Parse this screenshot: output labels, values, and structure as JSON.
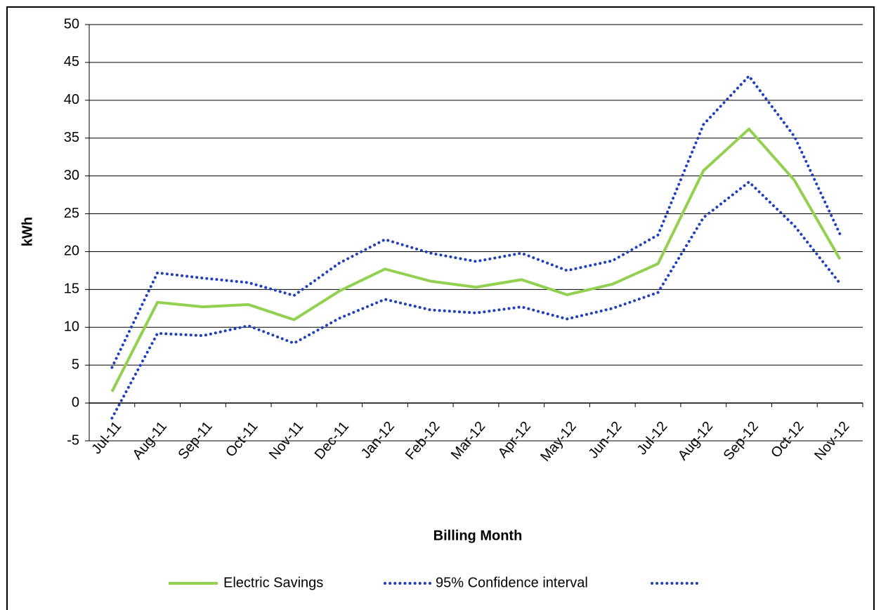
{
  "chart_data": {
    "type": "line",
    "ylabel": "kWh",
    "xlabel": "Billing Month",
    "categories": [
      "Jul-11",
      "Aug-11",
      "Sep-11",
      "Oct-11",
      "Nov-11",
      "Dec-11",
      "Jan-12",
      "Feb-12",
      "Mar-12",
      "Apr-12",
      "May-12",
      "Jun-12",
      "Jul-12",
      "Aug-12",
      "Sep-12",
      "Oct-12",
      "Nov-12"
    ],
    "series": [
      {
        "name": "Electric Savings",
        "color": "#92d050",
        "style": "solid",
        "values": [
          1.5,
          13.3,
          12.7,
          13.0,
          11.0,
          14.8,
          17.7,
          16.1,
          15.3,
          16.3,
          14.3,
          15.7,
          18.4,
          30.7,
          36.2,
          29.4,
          19.0
        ]
      },
      {
        "name": "95% Confidence interval",
        "color": "#1f3fbf",
        "style": "dotted",
        "values": [
          4.7,
          17.2,
          16.5,
          15.9,
          14.2,
          18.5,
          21.6,
          19.8,
          18.7,
          19.8,
          17.5,
          18.8,
          22.2,
          36.8,
          43.2,
          35.2,
          22.3
        ]
      },
      {
        "color": "#1f3fbf",
        "style": "dotted",
        "values": [
          -2.0,
          9.2,
          8.9,
          10.2,
          7.9,
          11.2,
          13.7,
          12.3,
          11.9,
          12.7,
          11.1,
          12.5,
          14.6,
          24.5,
          29.2,
          23.4,
          15.8
        ]
      }
    ],
    "ylim": [
      -5,
      50
    ],
    "yticks": [
      -5,
      0,
      5,
      10,
      15,
      20,
      25,
      30,
      35,
      40,
      45,
      50
    ],
    "grid": true,
    "legend": "bottom"
  }
}
